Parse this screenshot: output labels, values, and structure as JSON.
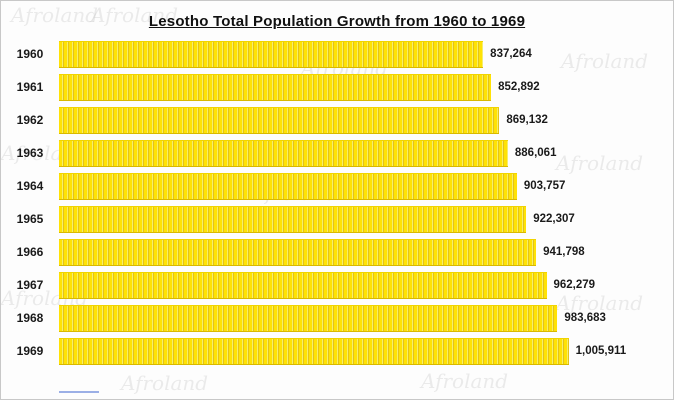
{
  "title": "Lesotho Total Population Growth from 1960 to 1969",
  "watermark_text": "Afroland",
  "colors": {
    "bar": "#ffe205",
    "bar_stripe": "#e3c21a",
    "text": "#1a1a1a",
    "frame_border": "#c8c8c8"
  },
  "chart_data": {
    "type": "bar",
    "orientation": "horizontal",
    "title": "Lesotho Total Population Growth from 1960 to 1969",
    "categories": [
      "1960",
      "1961",
      "1962",
      "1963",
      "1964",
      "1965",
      "1966",
      "1967",
      "1968",
      "1969"
    ],
    "values": [
      837264,
      852892,
      869132,
      886061,
      903757,
      922307,
      941798,
      962279,
      983683,
      1005911
    ],
    "value_labels": [
      "837,264",
      "852,892",
      "869,132",
      "886,061",
      "903,757",
      "922,307",
      "941,798",
      "962,279",
      "983,683",
      "1,005,911"
    ],
    "xlabel": "",
    "ylabel": "",
    "xlim": [
      0,
      1005911
    ],
    "grid": false,
    "legend": false
  }
}
